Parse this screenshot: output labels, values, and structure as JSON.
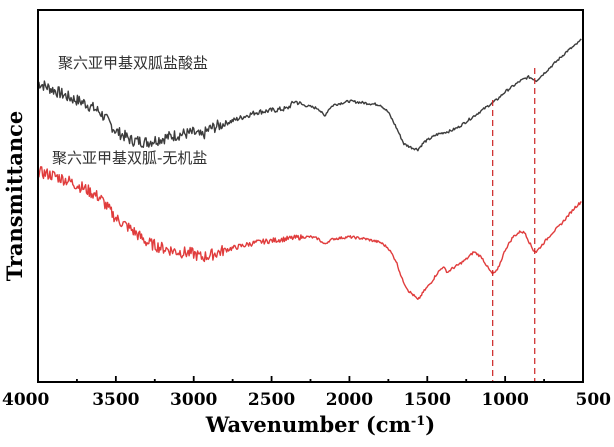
{
  "chart_data": {
    "type": "line",
    "xlabel": "Wavenumber (cm",
    "xlabel_sup": "-1",
    "xlabel_end": ")",
    "ylabel": "Transmittance",
    "xlim": [
      4000,
      500
    ],
    "ylim": [
      0,
      100
    ],
    "x_reversed": true,
    "xticks": [
      4000,
      3500,
      3000,
      2500,
      2000,
      1500,
      1000,
      500
    ],
    "yticks": "none",
    "grid": false,
    "series": [
      {
        "name": "聚六亚甲基双胍盐酸盐",
        "color": "#3c3c3c",
        "points": [
          [
            4000,
            80.5
          ],
          [
            3900,
            78.5
          ],
          [
            3800,
            76.5
          ],
          [
            3700,
            75.0
          ],
          [
            3600,
            72.5
          ],
          [
            3500,
            67.5
          ],
          [
            3400,
            65.0
          ],
          [
            3300,
            64.5
          ],
          [
            3200,
            65.5
          ],
          [
            3100,
            66.5
          ],
          [
            3000,
            67.0
          ],
          [
            2950,
            66.0
          ],
          [
            2900,
            68.0
          ],
          [
            2800,
            69.5
          ],
          [
            2700,
            71.0
          ],
          [
            2600,
            72.5
          ],
          [
            2500,
            73.0
          ],
          [
            2400,
            73.5
          ],
          [
            2350,
            75.5
          ],
          [
            2300,
            74.5
          ],
          [
            2250,
            74.0
          ],
          [
            2200,
            73.5
          ],
          [
            2160,
            71.5
          ],
          [
            2130,
            73.5
          ],
          [
            2100,
            74.5
          ],
          [
            2000,
            75.5
          ],
          [
            1900,
            75.0
          ],
          [
            1800,
            74.5
          ],
          [
            1750,
            72.5
          ],
          [
            1700,
            68.5
          ],
          [
            1650,
            64.0
          ],
          [
            1600,
            63.0
          ],
          [
            1560,
            62.5
          ],
          [
            1520,
            64.5
          ],
          [
            1480,
            65.5
          ],
          [
            1440,
            66.5
          ],
          [
            1400,
            67.0
          ],
          [
            1350,
            67.5
          ],
          [
            1300,
            68.5
          ],
          [
            1250,
            70.0
          ],
          [
            1200,
            71.5
          ],
          [
            1150,
            73.0
          ],
          [
            1100,
            74.5
          ],
          [
            1050,
            76.0
          ],
          [
            1000,
            78.0
          ],
          [
            950,
            79.5
          ],
          [
            900,
            81.0
          ],
          [
            850,
            82.0
          ],
          [
            820,
            81.5
          ],
          [
            800,
            81.0
          ],
          [
            750,
            83.0
          ],
          [
            700,
            85.0
          ],
          [
            650,
            87.0
          ],
          [
            600,
            89.0
          ],
          [
            550,
            90.5
          ],
          [
            510,
            92.0
          ]
        ]
      },
      {
        "name": "聚六亚甲基双胍-无机盐",
        "color": "#e03c3c",
        "points": [
          [
            4000,
            56.5
          ],
          [
            3900,
            55.5
          ],
          [
            3800,
            54.0
          ],
          [
            3700,
            52.0
          ],
          [
            3600,
            49.5
          ],
          [
            3500,
            44.0
          ],
          [
            3400,
            41.0
          ],
          [
            3300,
            37.5
          ],
          [
            3200,
            36.0
          ],
          [
            3100,
            35.0
          ],
          [
            3000,
            34.5
          ],
          [
            2950,
            33.5
          ],
          [
            2900,
            34.0
          ],
          [
            2800,
            35.5
          ],
          [
            2700,
            36.5
          ],
          [
            2600,
            37.5
          ],
          [
            2500,
            38.0
          ],
          [
            2400,
            38.5
          ],
          [
            2300,
            39.0
          ],
          [
            2250,
            39.0
          ],
          [
            2200,
            38.5
          ],
          [
            2160,
            37.0
          ],
          [
            2130,
            38.0
          ],
          [
            2100,
            38.5
          ],
          [
            2000,
            39.0
          ],
          [
            1900,
            38.5
          ],
          [
            1800,
            37.5
          ],
          [
            1750,
            36.0
          ],
          [
            1700,
            32.5
          ],
          [
            1660,
            27.5
          ],
          [
            1620,
            24.5
          ],
          [
            1580,
            23.0
          ],
          [
            1560,
            22.0
          ],
          [
            1520,
            24.5
          ],
          [
            1480,
            26.5
          ],
          [
            1440,
            29.0
          ],
          [
            1400,
            31.0
          ],
          [
            1370,
            29.5
          ],
          [
            1340,
            30.5
          ],
          [
            1300,
            31.5
          ],
          [
            1250,
            33.0
          ],
          [
            1200,
            35.0
          ],
          [
            1150,
            33.5
          ],
          [
            1100,
            30.0
          ],
          [
            1080,
            29.0
          ],
          [
            1050,
            30.0
          ],
          [
            1000,
            35.5
          ],
          [
            950,
            39.0
          ],
          [
            900,
            40.5
          ],
          [
            870,
            40.0
          ],
          [
            850,
            38.0
          ],
          [
            820,
            35.5
          ],
          [
            800,
            35.0
          ],
          [
            750,
            37.5
          ],
          [
            700,
            40.0
          ],
          [
            650,
            42.0
          ],
          [
            600,
            44.5
          ],
          [
            550,
            47.0
          ],
          [
            510,
            48.5
          ]
        ]
      }
    ],
    "reference_lines": [
      1080,
      810
    ]
  }
}
